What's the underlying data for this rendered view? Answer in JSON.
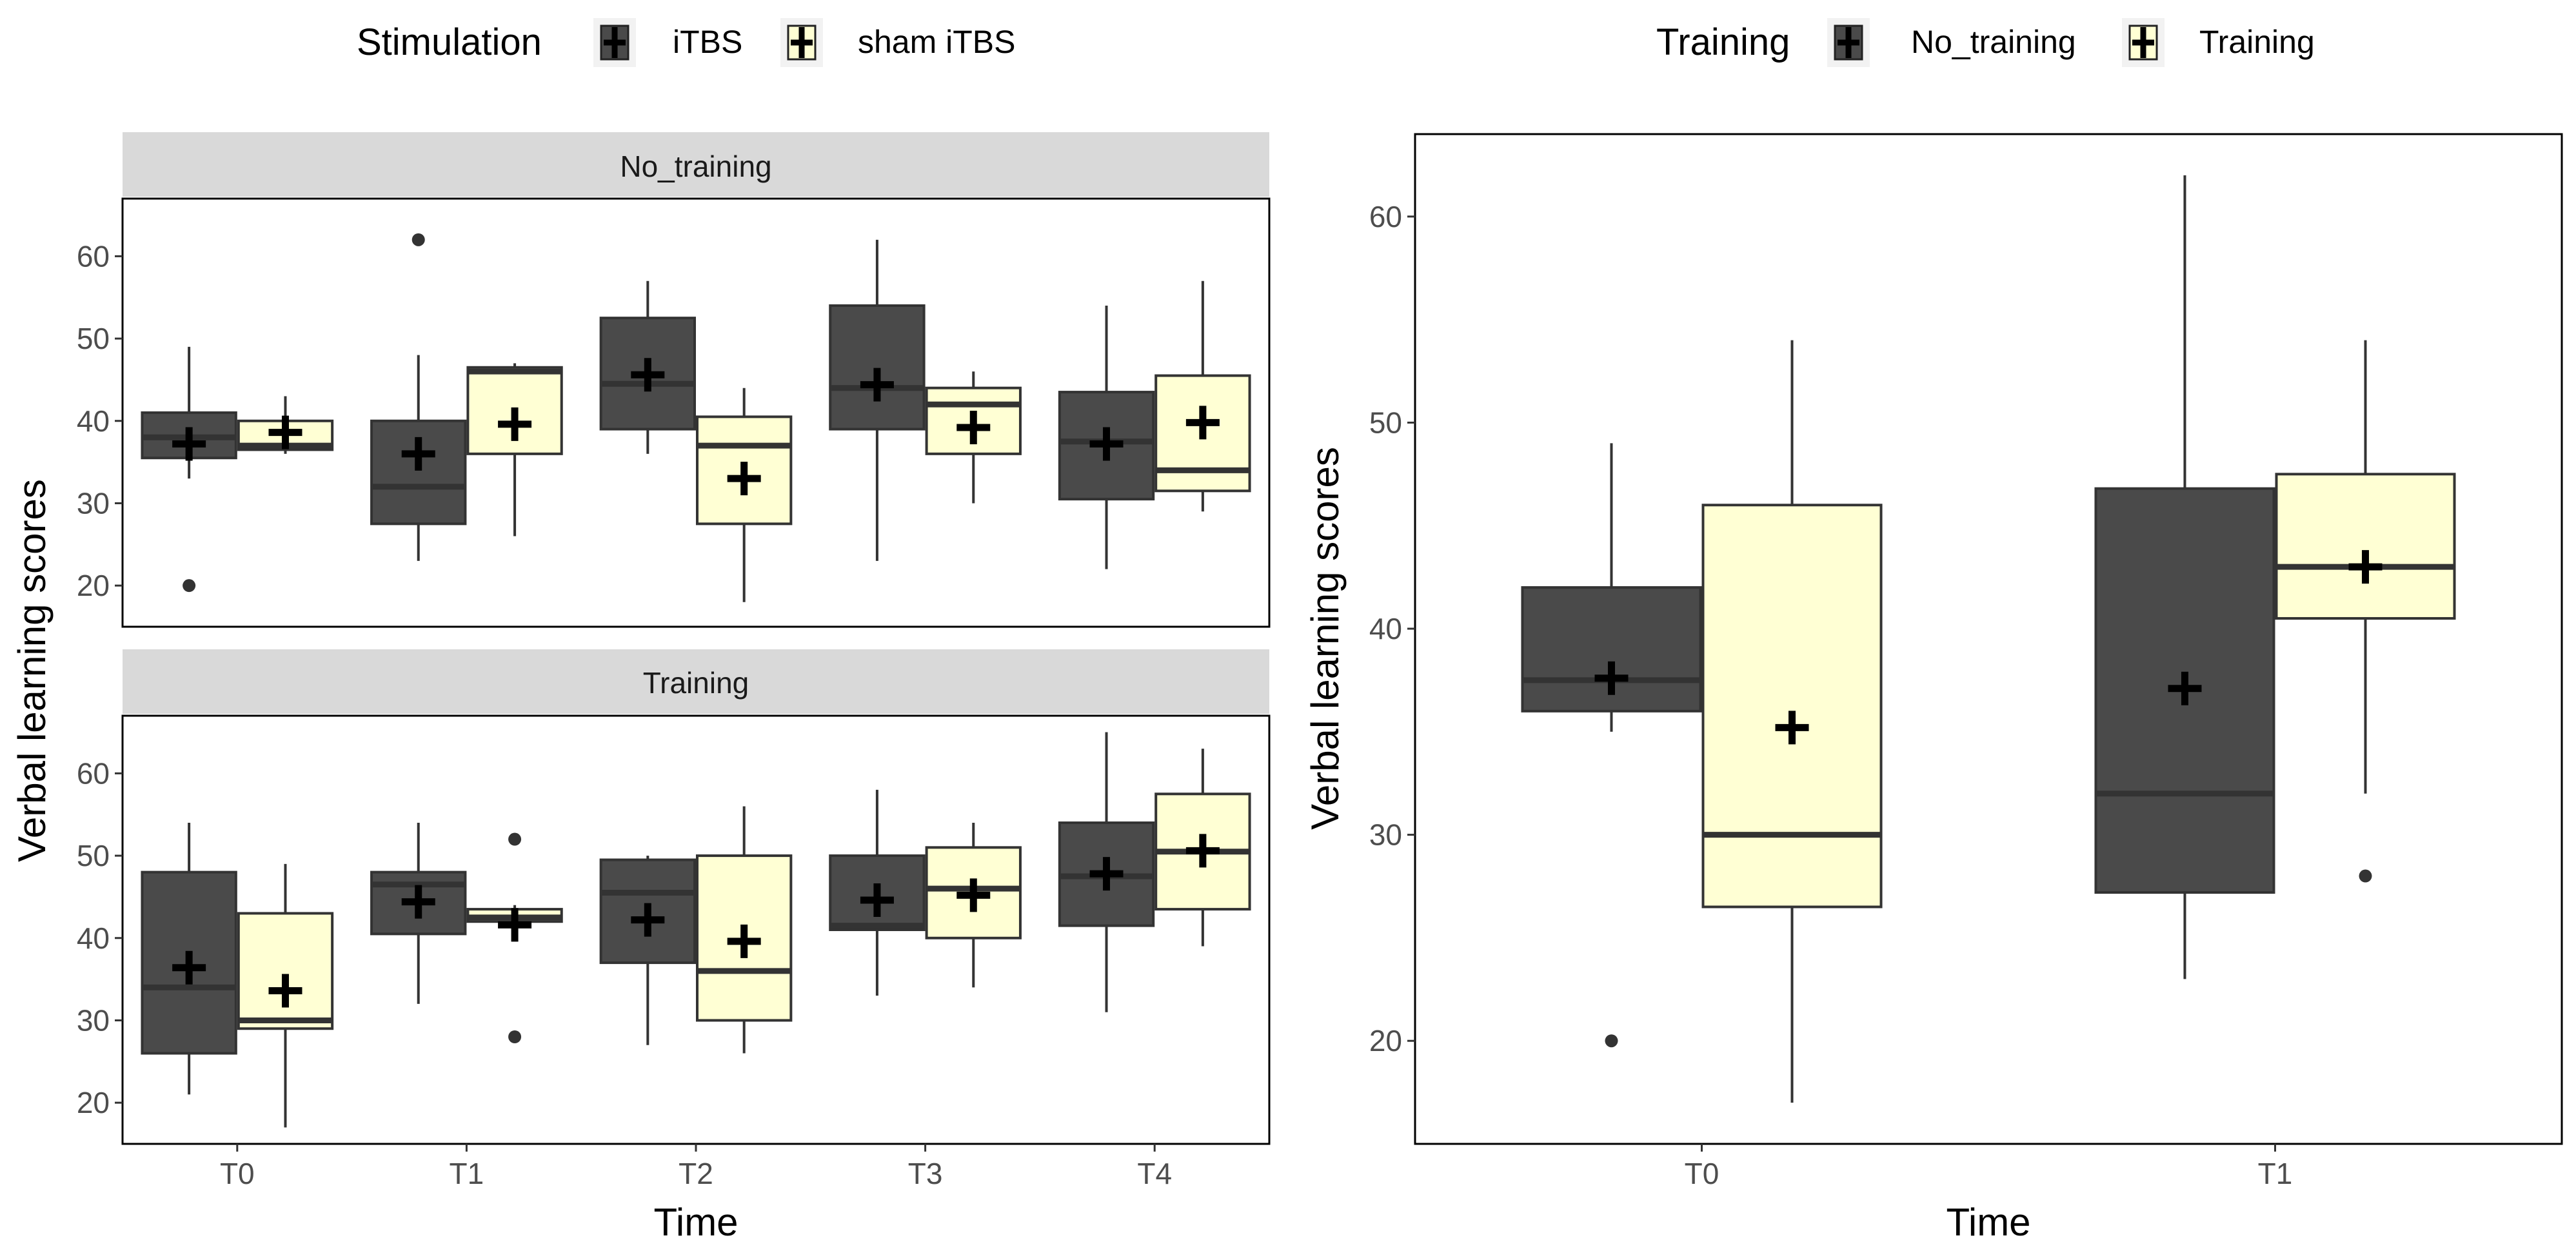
{
  "colors": {
    "dark_fill": "#4a4a4a",
    "light_fill": "#ffffd4",
    "strip_fill": "#d9d9d9",
    "axis_text": "#4d4d4d",
    "mark": "#000000",
    "whisker": "#333333"
  },
  "chart_data": [
    {
      "type": "box",
      "id": "left",
      "legend": {
        "title": "Stimulation",
        "entries": [
          {
            "name": "iTBS",
            "fill": "dark"
          },
          {
            "name": "sham iTBS",
            "fill": "light"
          }
        ],
        "position": "top"
      },
      "xlabel": "Time",
      "ylabel": "Verbal learning scores",
      "categories": [
        "T0",
        "T1",
        "T2",
        "T3",
        "T4"
      ],
      "ylim": [
        15,
        67
      ],
      "yticks": [
        20,
        30,
        40,
        50,
        60
      ],
      "facets": [
        {
          "strip": "No_training",
          "series": [
            {
              "name": "iTBS",
              "fill": "dark",
              "boxes": [
                {
                  "q1": 35.5,
                  "median": 38,
                  "q3": 41,
                  "whisker_low": 33,
                  "whisker_high": 49,
                  "mean": 37.2,
                  "outliers": [
                    20
                  ]
                },
                {
                  "q1": 27.5,
                  "median": 32,
                  "q3": 40,
                  "whisker_low": 23,
                  "whisker_high": 48,
                  "mean": 36,
                  "outliers": [
                    62
                  ]
                },
                {
                  "q1": 39,
                  "median": 44.5,
                  "q3": 52.5,
                  "whisker_low": 36,
                  "whisker_high": 57,
                  "mean": 45.6,
                  "outliers": []
                },
                {
                  "q1": 39,
                  "median": 44,
                  "q3": 54,
                  "whisker_low": 23,
                  "whisker_high": 62,
                  "mean": 44.4,
                  "outliers": []
                },
                {
                  "q1": 30.5,
                  "median": 37.5,
                  "q3": 43.5,
                  "whisker_low": 22,
                  "whisker_high": 54,
                  "mean": 37.2,
                  "outliers": []
                }
              ]
            },
            {
              "name": "sham iTBS",
              "fill": "light",
              "boxes": [
                {
                  "q1": 36.5,
                  "median": 37,
                  "q3": 40,
                  "whisker_low": 36,
                  "whisker_high": 43,
                  "mean": 38.6,
                  "outliers": []
                },
                {
                  "q1": 36,
                  "median": 46,
                  "q3": 46.5,
                  "whisker_low": 26,
                  "whisker_high": 47,
                  "mean": 39.6,
                  "outliers": []
                },
                {
                  "q1": 27.5,
                  "median": 37,
                  "q3": 40.5,
                  "whisker_low": 18,
                  "whisker_high": 44,
                  "mean": 33,
                  "outliers": []
                },
                {
                  "q1": 36,
                  "median": 42,
                  "q3": 44,
                  "whisker_low": 30,
                  "whisker_high": 46,
                  "mean": 39.2,
                  "outliers": []
                },
                {
                  "q1": 31.5,
                  "median": 34,
                  "q3": 45.5,
                  "whisker_low": 29,
                  "whisker_high": 57,
                  "mean": 39.8,
                  "outliers": []
                }
              ]
            }
          ]
        },
        {
          "strip": "Training",
          "series": [
            {
              "name": "iTBS",
              "fill": "dark",
              "boxes": [
                {
                  "q1": 26,
                  "median": 34,
                  "q3": 48,
                  "whisker_low": 21,
                  "whisker_high": 54,
                  "mean": 36.4,
                  "outliers": []
                },
                {
                  "q1": 40.5,
                  "median": 46.5,
                  "q3": 48,
                  "whisker_low": 32,
                  "whisker_high": 54,
                  "mean": 44.4,
                  "outliers": []
                },
                {
                  "q1": 37,
                  "median": 45.5,
                  "q3": 49.5,
                  "whisker_low": 27,
                  "whisker_high": 50,
                  "mean": 42.2,
                  "outliers": []
                },
                {
                  "q1": 41,
                  "median": 41.5,
                  "q3": 50,
                  "whisker_low": 33,
                  "whisker_high": 58,
                  "mean": 44.6,
                  "outliers": []
                },
                {
                  "q1": 41.5,
                  "median": 47.5,
                  "q3": 54,
                  "whisker_low": 31,
                  "whisker_high": 65,
                  "mean": 47.8,
                  "outliers": []
                }
              ]
            },
            {
              "name": "sham iTBS",
              "fill": "light",
              "boxes": [
                {
                  "q1": 29,
                  "median": 30,
                  "q3": 43,
                  "whisker_low": 17,
                  "whisker_high": 49,
                  "mean": 33.6,
                  "outliers": []
                },
                {
                  "q1": 42,
                  "median": 42.5,
                  "q3": 43.5,
                  "whisker_low": 42,
                  "whisker_high": 44,
                  "mean": 41.6,
                  "outliers": [
                    28,
                    52
                  ]
                },
                {
                  "q1": 30,
                  "median": 36,
                  "q3": 50,
                  "whisker_low": 26,
                  "whisker_high": 56,
                  "mean": 39.6,
                  "outliers": []
                },
                {
                  "q1": 40,
                  "median": 46,
                  "q3": 51,
                  "whisker_low": 34,
                  "whisker_high": 54,
                  "mean": 45.2,
                  "outliers": []
                },
                {
                  "q1": 43.5,
                  "median": 50.5,
                  "q3": 57.5,
                  "whisker_low": 39,
                  "whisker_high": 63,
                  "mean": 50.6,
                  "outliers": []
                }
              ]
            }
          ]
        }
      ]
    },
    {
      "type": "box",
      "id": "right",
      "legend": {
        "title": "Training",
        "entries": [
          {
            "name": "No_training",
            "fill": "dark"
          },
          {
            "name": "Training",
            "fill": "light"
          }
        ],
        "position": "top"
      },
      "xlabel": "Time",
      "ylabel": "Verbal learning scores",
      "categories": [
        "T0",
        "T1"
      ],
      "ylim": [
        15,
        64
      ],
      "yticks": [
        20,
        30,
        40,
        50,
        60
      ],
      "series": [
        {
          "name": "No_training",
          "fill": "dark",
          "boxes": [
            {
              "q1": 36,
              "median": 37.5,
              "q3": 42,
              "whisker_low": 35,
              "whisker_high": 49,
              "mean": 37.6,
              "outliers": [
                20
              ]
            },
            {
              "q1": 27.2,
              "median": 32,
              "q3": 46.8,
              "whisker_low": 23,
              "whisker_high": 62,
              "mean": 37.1,
              "outliers": []
            }
          ]
        },
        {
          "name": "Training",
          "fill": "light",
          "boxes": [
            {
              "q1": 26.5,
              "median": 30,
              "q3": 46,
              "whisker_low": 17,
              "whisker_high": 54,
              "mean": 35.2,
              "outliers": []
            },
            {
              "q1": 40.5,
              "median": 43,
              "q3": 47.5,
              "whisker_low": 32,
              "whisker_high": 54,
              "mean": 43,
              "outliers": [
                28
              ]
            }
          ]
        }
      ]
    }
  ]
}
